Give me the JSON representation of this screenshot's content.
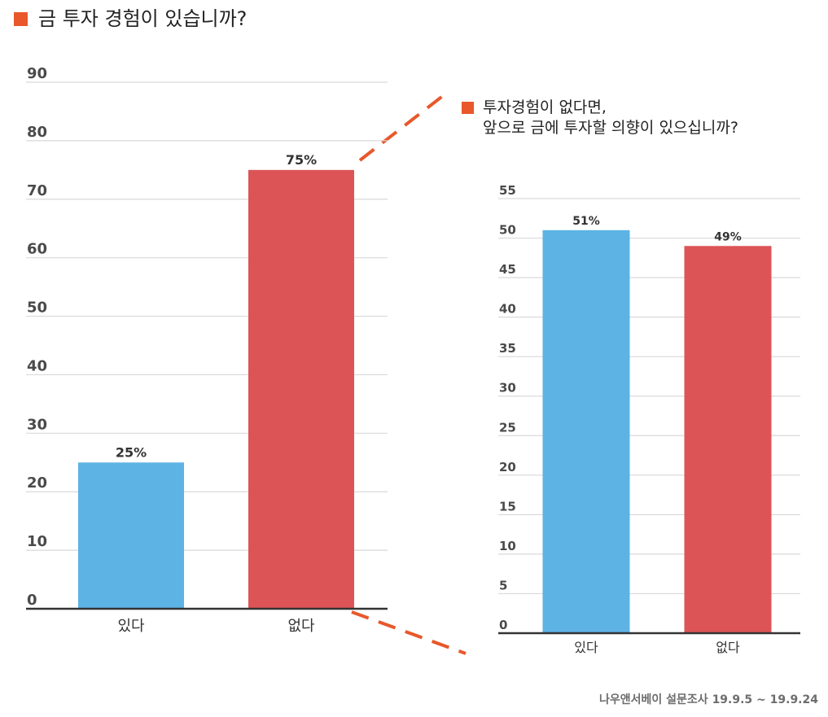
{
  "header": {
    "title": "금 투자 경험이 있습니까?",
    "accent_color": "#e8582a"
  },
  "subheader": {
    "title": "투자경험이 없다면,\n앞으로 금에 투자할 의향이 있으십니까?"
  },
  "chart_data": [
    {
      "type": "bar",
      "title": "금 투자 경험이 있습니까?",
      "categories": [
        "있다",
        "없다"
      ],
      "values": [
        25,
        75
      ],
      "data_labels": [
        "25%",
        "75%"
      ],
      "colors": [
        "#5cb3e4",
        "#dc5456"
      ],
      "ylim": [
        0,
        90
      ],
      "yticks": [
        0,
        10,
        20,
        30,
        40,
        50,
        60,
        70,
        80,
        90
      ],
      "grid": true
    },
    {
      "type": "bar",
      "title": "투자경험이 없다면,\n앞으로 금에 투자할 의향이 있으십니까?",
      "categories": [
        "있다",
        "없다"
      ],
      "values": [
        51,
        49
      ],
      "data_labels": [
        "51%",
        "49%"
      ],
      "colors": [
        "#5cb3e4",
        "#dc5456"
      ],
      "ylim": [
        0,
        55
      ],
      "yticks": [
        0,
        5,
        10,
        15,
        20,
        25,
        30,
        35,
        40,
        45,
        50,
        55
      ],
      "grid": true
    }
  ],
  "footer": {
    "source": "나우앤서베이 설문조사 19.9.5 ~ 19.9.24"
  }
}
